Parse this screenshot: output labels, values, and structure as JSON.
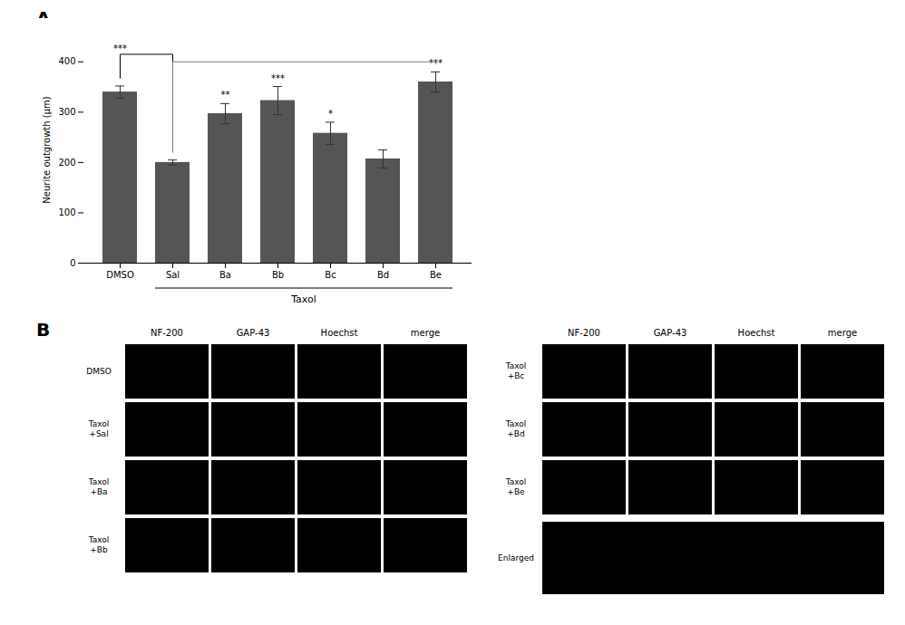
{
  "chart_data": [
    {
      "type": "bar",
      "title": "A",
      "categories": [
        "DMSO",
        "Sal",
        "Ba",
        "Bb",
        "Bc",
        "Bd",
        "Be"
      ],
      "values": [
        340,
        200,
        297,
        323,
        258,
        207,
        360
      ],
      "errors": [
        12,
        5,
        20,
        28,
        22,
        18,
        20
      ],
      "color": "#555555",
      "ylabel": "Neurite outgrowth (μm)",
      "ylim": [
        0,
        450
      ],
      "yticks": [
        0,
        100,
        200,
        300,
        400
      ],
      "annotations": [
        {
          "category": "Ba",
          "text": "**"
        },
        {
          "category": "Bb",
          "text": "***"
        },
        {
          "category": "Bc",
          "text": "*"
        },
        {
          "category": "Be",
          "text": "***"
        },
        {
          "from": "DMSO",
          "to": "Sal",
          "y": 415,
          "text": "***"
        },
        {
          "from": "Sal",
          "to": "Be",
          "y": 400,
          "color": "#808080"
        },
        {
          "from": "Sal",
          "to": "Be",
          "text": "Taxol",
          "position": "below"
        }
      ]
    },
    {
      "type": "image",
      "title": "B",
      "color": "#000000",
      "panels": [
        {
          "columns": [
            "NF-200",
            "GAP-43",
            "Hoechst",
            "merge"
          ],
          "rows": [
            "DMSO",
            "Taxol\n+Sal",
            "Taxol\n+Ba",
            "Taxol\n+Bb"
          ]
        },
        {
          "columns": [
            "NF-200",
            "GAP-43",
            "Hoechst",
            "merge"
          ],
          "rows": [
            "Taxol\n+Bc",
            "Taxol\n+Bd",
            "Taxol\n+Be"
          ],
          "enlarged": "Enlarged"
        }
      ]
    }
  ]
}
